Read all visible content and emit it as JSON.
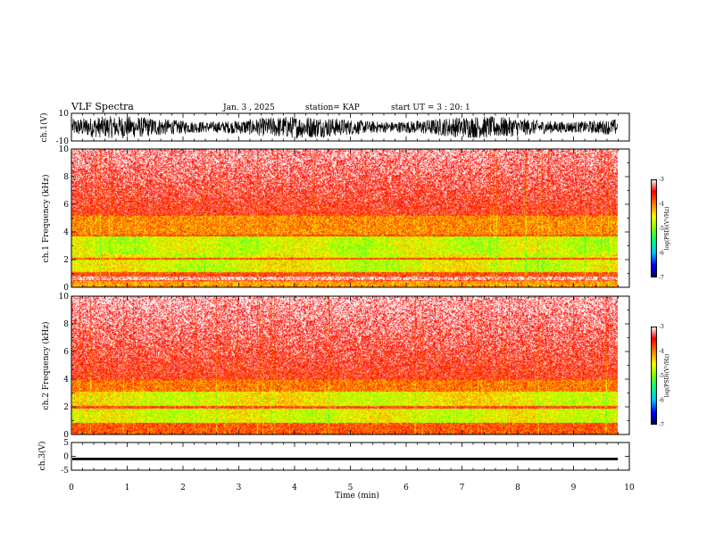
{
  "header": {
    "title": "VLF Spectra",
    "date": "Jan. 3 , 2025",
    "station": "station= KAP",
    "start": "start UT = 3 : 20: 1"
  },
  "colors": {
    "background": "#ffffff",
    "axis": "#000000",
    "trace": "#000000",
    "colorscale": [
      "#000060",
      "#0000ff",
      "#00c8ff",
      "#00ff80",
      "#80ff00",
      "#ffff00",
      "#ff8000",
      "#ff0000",
      "#ffffff"
    ]
  },
  "chart_data": [
    {
      "type": "line",
      "panel": "ch1",
      "ylabel": "ch.1(V)",
      "ylim": [
        -10,
        10
      ],
      "yticks": [
        "10",
        "-10"
      ],
      "xlim": [
        0,
        10
      ],
      "signal": "dense noisy waveform, amplitude mostly within ±8 V, ending near 9.8 min"
    },
    {
      "type": "heatmap",
      "panel": "ch1-spectrogram",
      "ylabel": "ch.1 Frequency (kHz)",
      "ylim": [
        0,
        10
      ],
      "yticks": [
        "0",
        "2",
        "4",
        "6",
        "8",
        "10"
      ],
      "xlim": [
        0,
        10
      ],
      "colorbar": {
        "label": "log(PSD)(V²/Hz)",
        "range": [
          -7,
          -3
        ],
        "ticks": [
          "-3",
          "-4",
          "-5",
          "-6",
          "-7"
        ]
      },
      "features": "intense red/yellow/green emission 0–5 kHz, speckled red above 5 kHz fading to white near 10 kHz, white gap near 0.7 kHz"
    },
    {
      "type": "heatmap",
      "panel": "ch2-spectrogram",
      "ylabel": "ch.2 Frequency (kHz)",
      "ylim": [
        0,
        10
      ],
      "yticks": [
        "0",
        "2",
        "4",
        "6",
        "8",
        "10"
      ],
      "xlim": [
        0,
        10
      ],
      "colorbar": {
        "label": "log(PSD)(V²/Hz)",
        "range": [
          -7,
          -3
        ],
        "ticks": [
          "-3",
          "-4",
          "-5",
          "-6",
          "-7"
        ]
      },
      "features": "strong emission 0.5–4 kHz with green patches, fading red speckle above 4 kHz"
    },
    {
      "type": "line",
      "panel": "ch3",
      "ylabel": "ch.3(V)",
      "ylim": [
        -5,
        5
      ],
      "yticks": [
        "5",
        "0",
        "-5"
      ],
      "xlim": [
        0,
        10
      ],
      "signal": "flat band around -1 V, width about 1 V"
    }
  ],
  "xaxis": {
    "label": "Time (min)",
    "ticks": [
      "0",
      "1",
      "2",
      "3",
      "4",
      "5",
      "6",
      "7",
      "8",
      "9",
      "10"
    ]
  }
}
